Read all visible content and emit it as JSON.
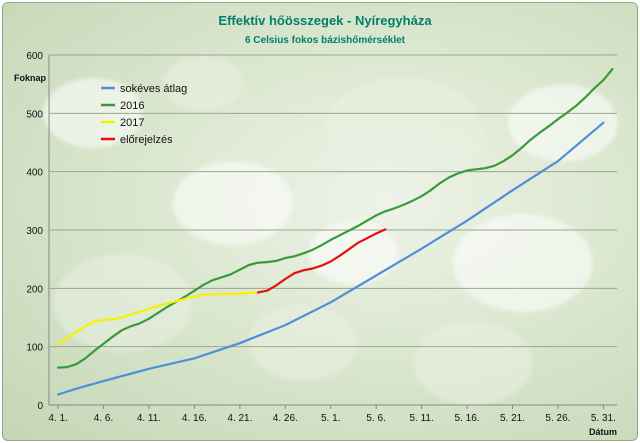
{
  "chart_data": {
    "type": "line",
    "title": "Effektív hőösszegek - Nyíregyháza",
    "subtitle": "6 Celsius fokos bázishőmérséklet",
    "ylabel": "Foknap",
    "xlabel": "Dátum",
    "ylim": [
      0,
      600
    ],
    "yticks": [
      0,
      100,
      200,
      300,
      400,
      500,
      600
    ],
    "x_range_days": [
      1,
      62
    ],
    "x_tick_labels": [
      "4. 1.",
      "4. 6.",
      "4. 11.",
      "4. 16.",
      "4. 21.",
      "4. 26.",
      "5. 1.",
      "5. 6.",
      "5. 11.",
      "5. 16.",
      "5. 21.",
      "5. 26.",
      "5. 31."
    ],
    "x_tick_days": [
      1,
      6,
      11,
      16,
      21,
      26,
      31,
      36,
      41,
      46,
      51,
      56,
      61
    ],
    "grid": true,
    "legend_position": "top-left",
    "colors": {
      "blue": "#4f8fd9",
      "green": "#3a9a3a",
      "yellow": "#f4f400",
      "red": "#e60f0f"
    },
    "series": [
      {
        "name": "sokéves átlag",
        "color": "#4f8fd9",
        "x": [
          1,
          3,
          6,
          11,
          16,
          21,
          26,
          31,
          36,
          41,
          46,
          51,
          56,
          61
        ],
        "values": [
          18,
          28,
          41,
          62,
          80,
          106,
          137,
          176,
          222,
          268,
          316,
          368,
          418,
          484
        ]
      },
      {
        "name": "2016",
        "color": "#3a9a3a",
        "x": [
          1,
          2,
          3,
          4,
          5,
          6,
          7,
          8,
          9,
          10,
          11,
          12,
          13,
          14,
          15,
          16,
          17,
          18,
          19,
          20,
          21,
          22,
          23,
          24,
          25,
          26,
          27,
          28,
          29,
          30,
          31,
          32,
          33,
          34,
          35,
          36,
          37,
          38,
          39,
          40,
          41,
          42,
          43,
          44,
          45,
          46,
          47,
          48,
          49,
          50,
          51,
          52,
          53,
          54,
          55,
          56,
          57,
          58,
          59,
          60,
          61,
          62
        ],
        "values": [
          64,
          65,
          70,
          80,
          93,
          105,
          117,
          128,
          135,
          140,
          148,
          158,
          168,
          177,
          186,
          196,
          206,
          214,
          219,
          224,
          232,
          240,
          244,
          245,
          247,
          252,
          255,
          260,
          266,
          274,
          283,
          291,
          299,
          307,
          316,
          325,
          332,
          337,
          343,
          350,
          358,
          368,
          380,
          390,
          397,
          402,
          404,
          406,
          410,
          418,
          428,
          441,
          455,
          467,
          478,
          490,
          501,
          513,
          527,
          543,
          557,
          576
        ]
      },
      {
        "name": "2017",
        "color": "#f4f400",
        "x": [
          1,
          2,
          3,
          4,
          5,
          6,
          7,
          8,
          9,
          10,
          11,
          12,
          13,
          14,
          15,
          16,
          17,
          18,
          19,
          20,
          21,
          22,
          23
        ],
        "values": [
          105,
          115,
          125,
          135,
          143,
          146,
          147,
          150,
          155,
          160,
          165,
          170,
          174,
          178,
          182,
          186,
          189,
          190,
          190,
          191,
          191,
          192,
          193
        ]
      },
      {
        "name": "előrejelzés",
        "color": "#e60f0f",
        "x": [
          23,
          24,
          25,
          26,
          27,
          28,
          29,
          30,
          31,
          32,
          33,
          34,
          35,
          36,
          37
        ],
        "values": [
          193,
          196,
          205,
          216,
          226,
          231,
          234,
          239,
          246,
          256,
          267,
          278,
          286,
          294,
          301
        ]
      }
    ]
  }
}
